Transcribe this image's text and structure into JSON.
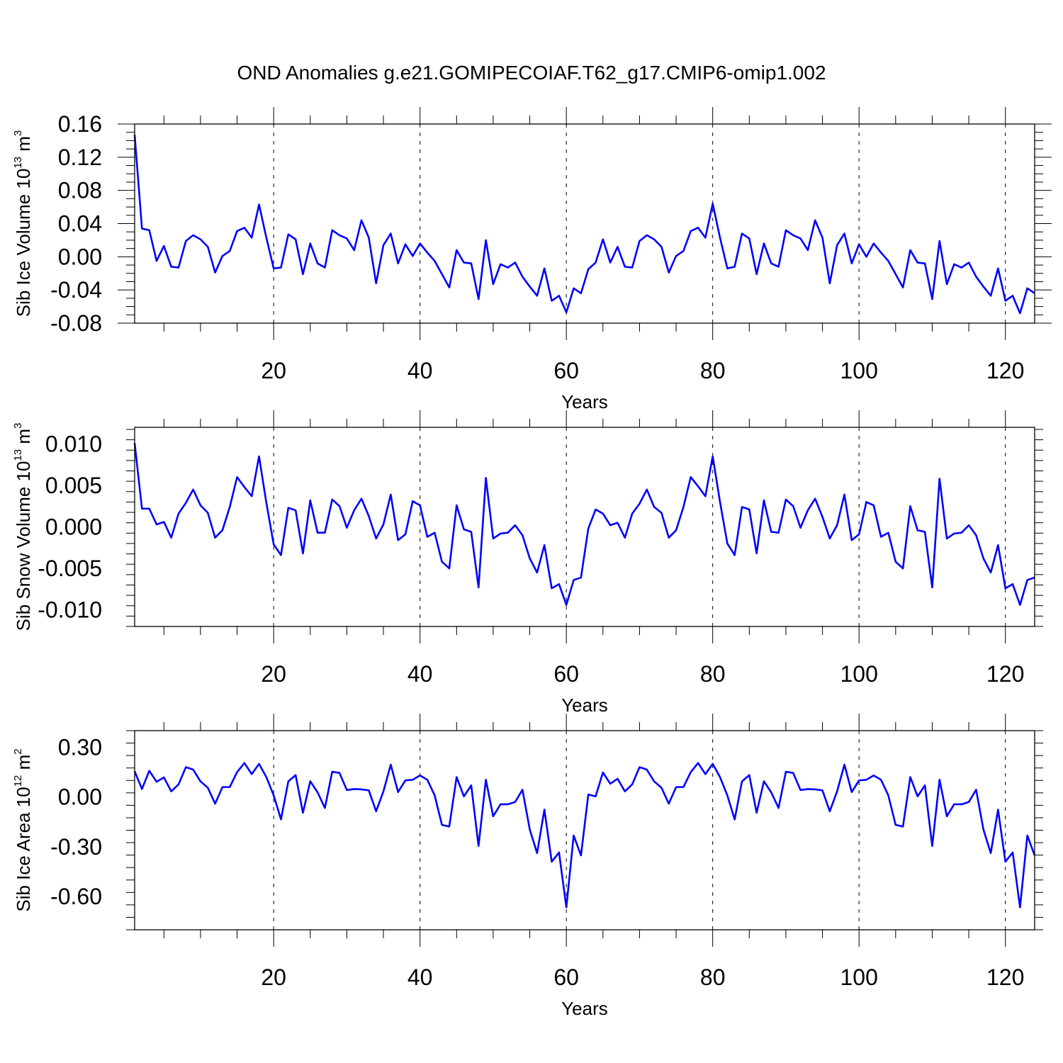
{
  "title": "OND Anomalies g.e21.GOMIPECOIAF.T62_g17.CMIP6-omip1.002",
  "line_color": "#0000ff",
  "chart_data": [
    {
      "type": "line",
      "title": "",
      "ylabel": {
        "prefix": "Sib Ice Volume 10",
        "exp": "13",
        "mid": " m",
        "unit_exp": "3"
      },
      "xlabel": "Years",
      "xlim": [
        1,
        124
      ],
      "ylim": [
        -0.08,
        0.16
      ],
      "xticks": [
        "20",
        "40",
        "60",
        "80",
        "100",
        "120"
      ],
      "yticks": [
        "0.16",
        "0.12",
        "0.08",
        "0.04",
        "0.00",
        "-0.04",
        "-0.08"
      ],
      "grid": "vertical dashed at major x ticks",
      "series": [
        {
          "x_start": 1,
          "values": [
            0.147,
            0.034,
            0.032,
            -0.005,
            0.013,
            -0.012,
            -0.013,
            0.019,
            0.026,
            0.021,
            0.012,
            -0.019,
            0.001,
            0.007,
            0.031,
            0.035,
            0.023,
            0.063,
            0.023,
            -0.014,
            -0.013,
            0.027,
            0.021,
            -0.021,
            0.016,
            -0.008,
            -0.013,
            0.032,
            0.026,
            0.022,
            0.008,
            0.044,
            0.023,
            -0.032,
            0.014,
            0.028,
            -0.008,
            0.015,
            0.001,
            0.016,
            0.005,
            -0.005,
            -0.021,
            -0.037,
            0.008,
            -0.007,
            -0.008,
            -0.051,
            0.02,
            -0.033,
            -0.009,
            -0.013,
            -0.007,
            -0.024,
            -0.036,
            -0.047,
            -0.014,
            -0.053,
            -0.047,
            -0.067,
            -0.038,
            -0.044,
            -0.015,
            -0.007,
            0.021,
            -0.007,
            0.012,
            -0.012,
            -0.013,
            0.019,
            0.026,
            0.021,
            0.012,
            -0.019,
            0.001,
            0.007,
            0.031,
            0.035,
            0.023,
            0.064,
            0.023,
            -0.014,
            -0.012,
            0.028,
            0.022,
            -0.021,
            0.016,
            -0.008,
            -0.012,
            0.032,
            0.026,
            0.022,
            0.008,
            0.044,
            0.023,
            -0.032,
            0.014,
            0.028,
            -0.008,
            0.015,
            0.0,
            0.016,
            0.005,
            -0.005,
            -0.021,
            -0.037,
            0.008,
            -0.007,
            -0.008,
            -0.051,
            0.019,
            -0.033,
            -0.009,
            -0.013,
            -0.007,
            -0.024,
            -0.036,
            -0.047,
            -0.014,
            -0.053,
            -0.047,
            -0.068,
            -0.038,
            -0.044
          ]
        }
      ]
    },
    {
      "type": "line",
      "title": "",
      "ylabel": {
        "prefix": "Sib Snow Volume 10",
        "exp": "13",
        "mid": " m",
        "unit_exp": "3"
      },
      "xlabel": "Years",
      "xlim": [
        1,
        124
      ],
      "ylim": [
        -0.012,
        0.012
      ],
      "xticks": [
        "20",
        "40",
        "60",
        "80",
        "100",
        "120"
      ],
      "yticks": [
        "0.010",
        "0.005",
        "0.000",
        "-0.005",
        "-0.010"
      ],
      "grid": "vertical dashed at major x ticks",
      "series": [
        {
          "x_start": 1,
          "values": [
            0.0101,
            0.0022,
            0.0022,
            0.0003,
            0.0006,
            -0.0013,
            0.0016,
            0.0029,
            0.0045,
            0.0026,
            0.0017,
            -0.0013,
            -0.0004,
            0.0024,
            0.006,
            0.0048,
            0.0037,
            0.0085,
            0.0029,
            -0.0021,
            -0.0034,
            0.0023,
            0.002,
            -0.0032,
            0.0032,
            -0.0007,
            -0.0007,
            0.0033,
            0.0025,
            -0.0001,
            0.002,
            0.0034,
            0.0013,
            -0.0014,
            0.0003,
            0.0039,
            -0.0016,
            -0.0009,
            0.0031,
            0.0026,
            -0.0012,
            -0.0007,
            -0.0042,
            -0.005,
            0.0026,
            -0.0003,
            -0.0006,
            -0.0073,
            0.0059,
            -0.0014,
            -0.0008,
            -0.0007,
            0.0002,
            -0.001,
            -0.0038,
            -0.0055,
            -0.0022,
            -0.0074,
            -0.0069,
            -0.0094,
            -0.0064,
            -0.0061,
            -0.0002,
            0.0021,
            0.0016,
            0.0002,
            0.0005,
            -0.0013,
            0.0016,
            0.0028,
            0.0045,
            0.0024,
            0.0017,
            -0.0013,
            -0.0004,
            0.0024,
            0.006,
            0.0049,
            0.0037,
            0.0085,
            0.003,
            -0.002,
            -0.0034,
            0.0024,
            0.0021,
            -0.0032,
            0.0032,
            -0.0006,
            -0.0007,
            0.0033,
            0.0025,
            -0.0001,
            0.002,
            0.0034,
            0.0012,
            -0.0014,
            0.0002,
            0.0039,
            -0.0016,
            -0.0009,
            0.003,
            0.0026,
            -0.0012,
            -0.0007,
            -0.0042,
            -0.005,
            0.0025,
            -0.0004,
            -0.0006,
            -0.0073,
            0.0058,
            -0.0014,
            -0.0008,
            -0.0007,
            0.0002,
            -0.001,
            -0.0038,
            -0.0055,
            -0.0022,
            -0.0074,
            -0.0069,
            -0.0094,
            -0.0064,
            -0.0061
          ]
        }
      ]
    },
    {
      "type": "line",
      "title": "",
      "ylabel": {
        "prefix": "Sib Ice Area 10",
        "exp": "12",
        "mid": " m",
        "unit_exp": "2"
      },
      "xlabel": "Years",
      "xlim": [
        1,
        124
      ],
      "ylim": [
        -0.8,
        0.4
      ],
      "xticks": [
        "20",
        "40",
        "60",
        "80",
        "100",
        "120"
      ],
      "yticks": [
        "0.30",
        "0.00",
        "-0.30",
        "-0.60"
      ],
      "grid": "vertical dashed at major x ticks",
      "series": [
        {
          "x_start": 1,
          "values": [
            0.155,
            0.048,
            0.158,
            0.092,
            0.118,
            0.034,
            0.076,
            0.18,
            0.165,
            0.094,
            0.056,
            -0.04,
            0.06,
            0.06,
            0.15,
            0.205,
            0.138,
            0.2,
            0.12,
            0.01,
            -0.135,
            0.094,
            0.132,
            -0.095,
            0.095,
            0.028,
            -0.066,
            0.152,
            0.145,
            0.042,
            0.048,
            0.046,
            0.04,
            -0.086,
            0.034,
            0.195,
            0.03,
            0.1,
            0.104,
            0.13,
            0.104,
            0.01,
            -0.168,
            -0.178,
            0.12,
            0.004,
            0.07,
            -0.295,
            0.104,
            -0.116,
            -0.044,
            -0.044,
            -0.03,
            0.044,
            -0.196,
            -0.338,
            -0.076,
            -0.39,
            -0.334,
            -0.665,
            -0.232,
            -0.352,
            0.015,
            0.004,
            0.148,
            0.08,
            0.11,
            0.034,
            0.076,
            0.18,
            0.165,
            0.094,
            0.056,
            -0.04,
            0.06,
            0.06,
            0.15,
            0.205,
            0.138,
            0.2,
            0.12,
            0.01,
            -0.135,
            0.094,
            0.132,
            -0.095,
            0.095,
            0.028,
            -0.066,
            0.152,
            0.145,
            0.042,
            0.048,
            0.046,
            0.04,
            -0.086,
            0.034,
            0.195,
            0.03,
            0.1,
            0.104,
            0.13,
            0.104,
            0.01,
            -0.168,
            -0.178,
            0.12,
            0.004,
            0.07,
            -0.295,
            0.104,
            -0.116,
            -0.044,
            -0.044,
            -0.03,
            0.044,
            -0.196,
            -0.338,
            -0.076,
            -0.39,
            -0.334,
            -0.665,
            -0.232,
            -0.352
          ]
        }
      ]
    }
  ]
}
